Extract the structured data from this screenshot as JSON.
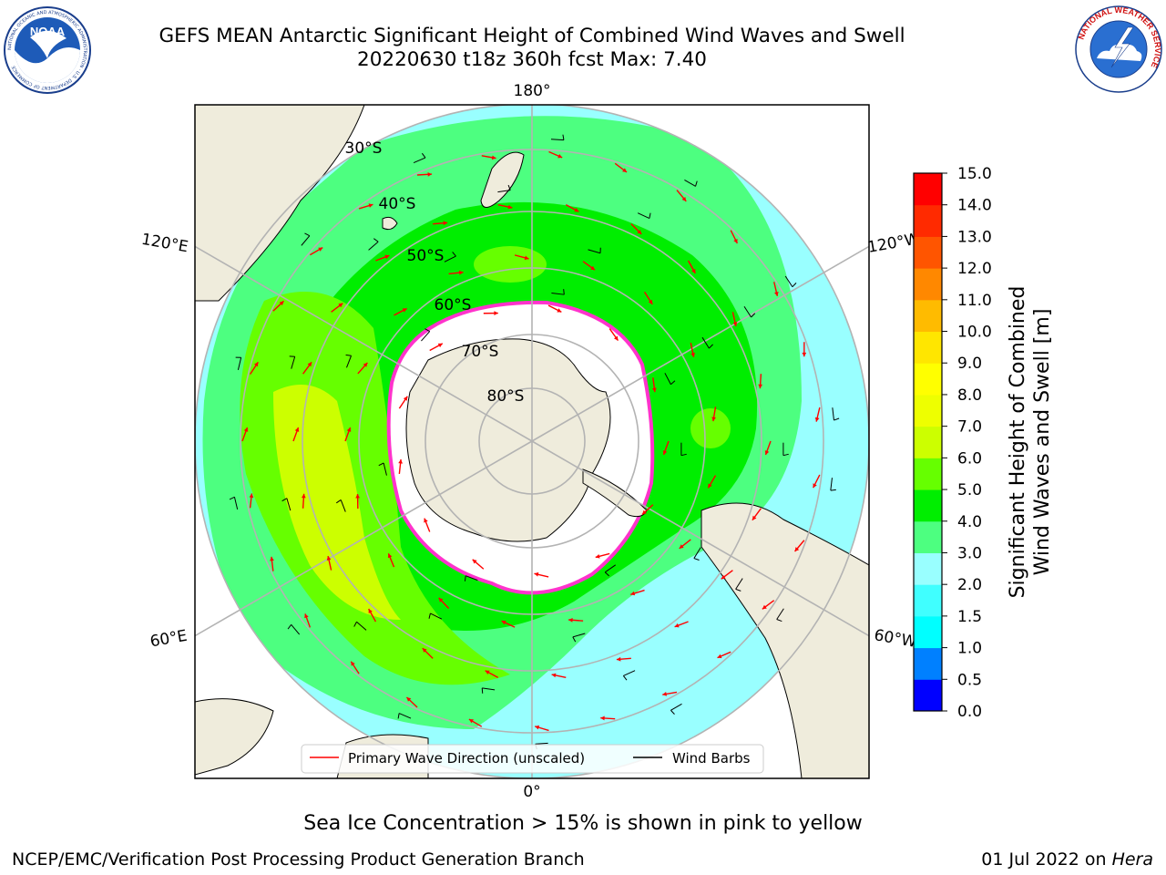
{
  "title": {
    "line1": "GEFS MEAN Antarctic Significant Height of Combined Wind Waves and Swell",
    "line2": "20220630 t18z 360h fcst   Max: 7.40"
  },
  "logos": {
    "left": {
      "icon": "noaa-logo-icon",
      "text": "NOAA",
      "ring_text": "NATIONAL OCEANIC AND ATMOSPHERIC ADMINISTRATION · U.S. DEPARTMENT OF COMMERCE"
    },
    "right": {
      "icon": "nws-logo-icon",
      "ring_text": "NATIONAL WEATHER SERVICE"
    }
  },
  "map": {
    "projection": "south-polar-stereographic",
    "longitude_labels": {
      "top": "180°",
      "bottom": "0°",
      "left_upper": "120°E",
      "left_lower": "60°E",
      "right_upper": "120°W",
      "right_lower": "60°W"
    },
    "latitude_labels": [
      "30°S",
      "40°S",
      "50°S",
      "60°S",
      "70°S",
      "80°S"
    ],
    "colors": {
      "land": "#efecdc",
      "sea_ice": "#ffffff",
      "sea_ice_edge": "#ff33cc",
      "grid": "#b3b3b3",
      "wave_arrow": "#ff0000",
      "wind_barb": "#000000"
    },
    "legend": {
      "placement": "bottom-center",
      "items": [
        {
          "label": "Primary Wave Direction (unscaled)",
          "color": "#ff0000"
        },
        {
          "label": "Wind Barbs",
          "color": "#000000"
        }
      ]
    }
  },
  "colorbar": {
    "label_line1": "Significant Height of Combined",
    "label_line2": "Wind Waves and Swell [m]",
    "ticks": [
      "0.0",
      "0.5",
      "1.0",
      "1.5",
      "2.0",
      "3.0",
      "4.0",
      "5.0",
      "6.0",
      "7.0",
      "8.0",
      "9.0",
      "10.0",
      "11.0",
      "12.0",
      "13.0",
      "14.0",
      "15.0"
    ],
    "colors": [
      "#0000ff",
      "#0080ff",
      "#00ffff",
      "#40ffff",
      "#99ffff",
      "#4dff80",
      "#00ee00",
      "#66ff00",
      "#ccff00",
      "#eeff00",
      "#ffff00",
      "#ffe600",
      "#ffbb00",
      "#ff8800",
      "#ff5500",
      "#ff2a00",
      "#ff0000"
    ]
  },
  "footer": {
    "note": "Sea Ice Concentration > 15% is shown in pink to yellow",
    "credit_left": "NCEP/EMC/Verification Post Processing Product Generation Branch",
    "credit_right_prefix": "01 Jul 2022 on ",
    "credit_right_host": "Hera"
  }
}
